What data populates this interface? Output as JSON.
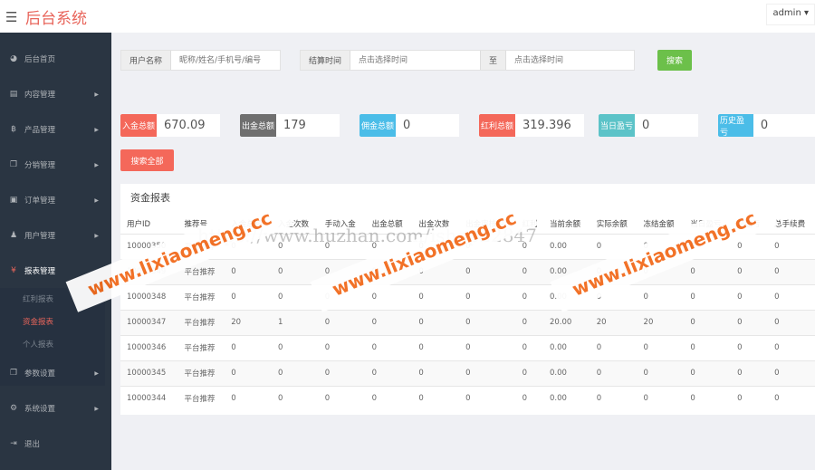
{
  "header": {
    "brand": "后台系统",
    "user": "admin"
  },
  "sidebar": {
    "items": [
      {
        "label": "后台首页",
        "icon": "dashboard-icon",
        "arrow": false
      },
      {
        "label": "内容管理",
        "icon": "book-icon",
        "arrow": true
      },
      {
        "label": "产品管理",
        "icon": "bitcoin-icon",
        "arrow": true
      },
      {
        "label": "分销管理",
        "icon": "copy-icon",
        "arrow": true
      },
      {
        "label": "订单管理",
        "icon": "file-icon",
        "arrow": true
      },
      {
        "label": "用户管理",
        "icon": "user-icon",
        "arrow": true
      },
      {
        "label": "报表管理",
        "icon": "yen-icon",
        "arrow": false,
        "active": true
      }
    ],
    "sub": [
      "红利报表",
      "资金报表",
      "个人报表"
    ],
    "items2": [
      {
        "label": "参数设置",
        "icon": "copy-icon",
        "arrow": true
      },
      {
        "label": "系统设置",
        "icon": "gears-icon",
        "arrow": true
      },
      {
        "label": "退出",
        "icon": "sign-out-icon",
        "arrow": false
      }
    ]
  },
  "search": {
    "user_label": "用户名称",
    "user_placeholder": "昵称/姓名/手机号/编号",
    "time_label": "结算时间",
    "start_placeholder": "点击选择时间",
    "to": "至",
    "end_placeholder": "点击选择时间",
    "search_btn": "搜索",
    "search_all": "搜索全部"
  },
  "stats": [
    {
      "label": "入金总额",
      "value": "670.09",
      "color": "#f4685a"
    },
    {
      "label": "出金总额",
      "value": "179",
      "color": "#6f6f6f"
    },
    {
      "label": "佣金总额",
      "value": "0",
      "color": "#4bbde8"
    },
    {
      "label": "红利总额",
      "value": "319.396",
      "color": "#f4685a"
    },
    {
      "label": "当日盈亏",
      "value": "0",
      "color": "#5cc3c8"
    },
    {
      "label": "历史盈亏",
      "value": "0",
      "color": "#4bbde8"
    }
  ],
  "colors": {
    "green": "#6cc04a",
    "accent": "#e8655b",
    "sidebar": "#2a3542"
  },
  "panel": {
    "title": "资金报表",
    "columns": [
      "用户ID",
      "推荐号",
      "入金总额",
      "入金次数",
      "手动入金",
      "出金总额",
      "出金次数",
      "出金审核中",
      "红利",
      "当前余额",
      "实际余额",
      "冻结金额",
      "当日盈亏",
      "总盈亏",
      "总手续费"
    ],
    "rows": [
      [
        "10000350",
        "平台推荐",
        "0",
        "0",
        "0",
        "0",
        "0",
        "0",
        "0",
        "0.00",
        "0",
        "0",
        "0",
        "0",
        "0"
      ],
      [
        "10000349",
        "平台推荐",
        "0",
        "0",
        "0",
        "0",
        "0",
        "0",
        "0",
        "0.00",
        "0",
        "0",
        "0",
        "0",
        "0"
      ],
      [
        "10000348",
        "平台推荐",
        "0",
        "0",
        "0",
        "0",
        "0",
        "0",
        "0",
        "0.00",
        "0",
        "0",
        "0",
        "0",
        "0"
      ],
      [
        "10000347",
        "平台推荐",
        "20",
        "1",
        "0",
        "0",
        "0",
        "0",
        "0",
        "20.00",
        "20",
        "20",
        "0",
        "0",
        "0"
      ],
      [
        "10000346",
        "平台推荐",
        "0",
        "0",
        "0",
        "0",
        "0",
        "0",
        "0",
        "0.00",
        "0",
        "0",
        "0",
        "0",
        "0"
      ],
      [
        "10000345",
        "平台推荐",
        "0",
        "0",
        "0",
        "0",
        "0",
        "0",
        "0",
        "0.00",
        "0",
        "0",
        "0",
        "0",
        "0"
      ],
      [
        "10000344",
        "平台推荐",
        "0",
        "0",
        "0",
        "0",
        "0",
        "0",
        "0",
        "0.00",
        "0",
        "0",
        "0",
        "0",
        "0"
      ]
    ]
  },
  "watermarks": {
    "site": "www.lixiaomeng.cc",
    "url": "https://www.huzhan.com/ishop22847"
  }
}
